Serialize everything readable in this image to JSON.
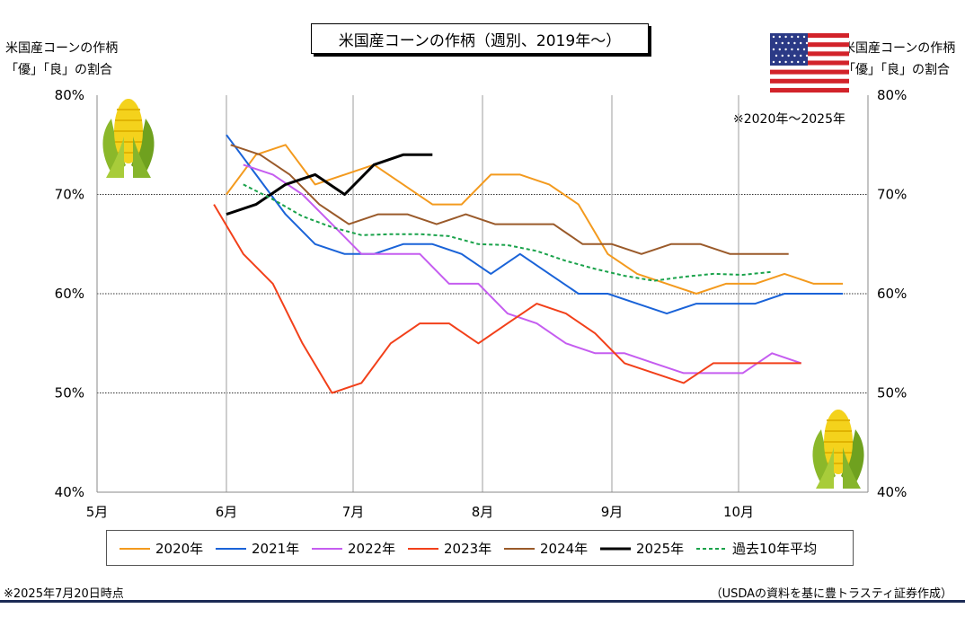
{
  "chart_data": {
    "type": "line",
    "title": "米国産コーンの作柄（週別、2019年～）",
    "ylabel_left": [
      "米国産コーンの作柄",
      "「優」「良」の割合"
    ],
    "ylabel_right": [
      "米国産コーンの作柄",
      "「優」「良」の割合"
    ],
    "ylim": [
      40,
      80
    ],
    "y_ticks": [
      "40%",
      "50%",
      "60%",
      "70%",
      "80%"
    ],
    "x_ticks": [
      "5月",
      "6月",
      "7月",
      "8月",
      "9月",
      "10月"
    ],
    "grid": "horizontal at 50%, 60%, 70%; vertical at month starts",
    "note_range": "※2020年～2025年",
    "series": [
      {
        "name": "2020年",
        "color": "#f39a1e",
        "dash": false,
        "width": 2,
        "points": [
          [
            "06-01",
            70
          ],
          [
            "06-08",
            74
          ],
          [
            "06-15",
            75
          ],
          [
            "06-22",
            71
          ],
          [
            "06-29",
            72
          ],
          [
            "07-06",
            73
          ],
          [
            "07-13",
            71
          ],
          [
            "07-20",
            69
          ],
          [
            "07-27",
            69
          ],
          [
            "08-03",
            72
          ],
          [
            "08-10",
            72
          ],
          [
            "08-17",
            71
          ],
          [
            "08-24",
            69
          ],
          [
            "08-31",
            64
          ],
          [
            "09-07",
            62
          ],
          [
            "09-14",
            61
          ],
          [
            "09-21",
            60
          ],
          [
            "09-28",
            61
          ],
          [
            "10-05",
            61
          ],
          [
            "10-12",
            62
          ],
          [
            "10-19",
            61
          ],
          [
            "10-26",
            61
          ]
        ]
      },
      {
        "name": "2021年",
        "color": "#1a63d8",
        "dash": false,
        "width": 2,
        "points": [
          [
            "06-01",
            76
          ],
          [
            "06-08",
            72
          ],
          [
            "06-15",
            68
          ],
          [
            "06-22",
            65
          ],
          [
            "06-29",
            64
          ],
          [
            "07-06",
            64
          ],
          [
            "07-13",
            65
          ],
          [
            "07-20",
            65
          ],
          [
            "07-27",
            64
          ],
          [
            "08-03",
            62
          ],
          [
            "08-10",
            64
          ],
          [
            "08-17",
            62
          ],
          [
            "08-24",
            60
          ],
          [
            "08-31",
            60
          ],
          [
            "09-07",
            59
          ],
          [
            "09-14",
            58
          ],
          [
            "09-21",
            59
          ],
          [
            "09-28",
            59
          ],
          [
            "10-05",
            59
          ],
          [
            "10-12",
            60
          ],
          [
            "10-19",
            60
          ],
          [
            "10-26",
            60
          ]
        ]
      },
      {
        "name": "2022年",
        "color": "#c55df0",
        "dash": false,
        "width": 2,
        "points": [
          [
            "06-05",
            73
          ],
          [
            "06-12",
            72
          ],
          [
            "06-19",
            70
          ],
          [
            "06-26",
            67
          ],
          [
            "07-03",
            64
          ],
          [
            "07-10",
            64
          ],
          [
            "07-17",
            64
          ],
          [
            "07-24",
            61
          ],
          [
            "07-31",
            61
          ],
          [
            "08-07",
            58
          ],
          [
            "08-14",
            57
          ],
          [
            "08-21",
            55
          ],
          [
            "08-28",
            54
          ],
          [
            "09-04",
            54
          ],
          [
            "09-11",
            53
          ],
          [
            "09-18",
            52
          ],
          [
            "09-25",
            52
          ],
          [
            "10-02",
            52
          ],
          [
            "10-09",
            54
          ],
          [
            "10-16",
            53
          ]
        ]
      },
      {
        "name": "2023年",
        "color": "#f2401a",
        "dash": false,
        "width": 2,
        "points": [
          [
            "05-29",
            69
          ],
          [
            "06-05",
            64
          ],
          [
            "06-12",
            61
          ],
          [
            "06-19",
            55
          ],
          [
            "06-26",
            50
          ],
          [
            "07-03",
            51
          ],
          [
            "07-10",
            55
          ],
          [
            "07-17",
            57
          ],
          [
            "07-24",
            57
          ],
          [
            "07-31",
            55
          ],
          [
            "08-07",
            57
          ],
          [
            "08-14",
            59
          ],
          [
            "08-21",
            58
          ],
          [
            "08-28",
            56
          ],
          [
            "09-04",
            53
          ],
          [
            "09-11",
            52
          ],
          [
            "09-18",
            51
          ],
          [
            "09-25",
            53
          ],
          [
            "10-02",
            53
          ],
          [
            "10-09",
            53
          ],
          [
            "10-16",
            53
          ]
        ]
      },
      {
        "name": "2024年",
        "color": "#9a5a2a",
        "dash": false,
        "width": 2,
        "points": [
          [
            "06-02",
            75
          ],
          [
            "06-09",
            74
          ],
          [
            "06-16",
            72
          ],
          [
            "06-23",
            69
          ],
          [
            "06-30",
            67
          ],
          [
            "07-07",
            68
          ],
          [
            "07-14",
            68
          ],
          [
            "07-21",
            67
          ],
          [
            "07-28",
            68
          ],
          [
            "08-04",
            67
          ],
          [
            "08-11",
            67
          ],
          [
            "08-18",
            67
          ],
          [
            "08-25",
            65
          ],
          [
            "09-01",
            65
          ],
          [
            "09-08",
            64
          ],
          [
            "09-15",
            65
          ],
          [
            "09-22",
            65
          ],
          [
            "09-29",
            64
          ],
          [
            "10-06",
            64
          ],
          [
            "10-13",
            64
          ]
        ]
      },
      {
        "name": "2025年",
        "color": "#000000",
        "dash": false,
        "width": 3,
        "points": [
          [
            "06-01",
            68
          ],
          [
            "06-08",
            69
          ],
          [
            "06-15",
            71
          ],
          [
            "06-22",
            72
          ],
          [
            "06-29",
            70
          ],
          [
            "07-06",
            73
          ],
          [
            "07-13",
            74
          ],
          [
            "07-20",
            74
          ]
        ]
      },
      {
        "name": "過去10年平均",
        "color": "#19a24a",
        "dash": true,
        "width": 2,
        "points": [
          [
            "06-05",
            71
          ],
          [
            "06-12",
            69.5
          ],
          [
            "06-19",
            67.8
          ],
          [
            "06-26",
            66.7
          ],
          [
            "07-03",
            65.9
          ],
          [
            "07-10",
            66
          ],
          [
            "07-17",
            66
          ],
          [
            "07-24",
            65.8
          ],
          [
            "07-31",
            65
          ],
          [
            "08-07",
            64.9
          ],
          [
            "08-14",
            64.3
          ],
          [
            "08-21",
            63.3
          ],
          [
            "08-28",
            62.5
          ],
          [
            "09-04",
            61.8
          ],
          [
            "09-11",
            61.3
          ],
          [
            "09-18",
            61.7
          ],
          [
            "09-25",
            62
          ],
          [
            "10-02",
            61.9
          ],
          [
            "10-09",
            62.2
          ]
        ]
      }
    ]
  },
  "footer": {
    "timestamp": "※2025年7月20日時点",
    "source": "（USDAの資料を基に豊トラスティ証券作成）"
  },
  "decor": {
    "flag": "us-flag-icon",
    "corn": "corn-icon"
  }
}
